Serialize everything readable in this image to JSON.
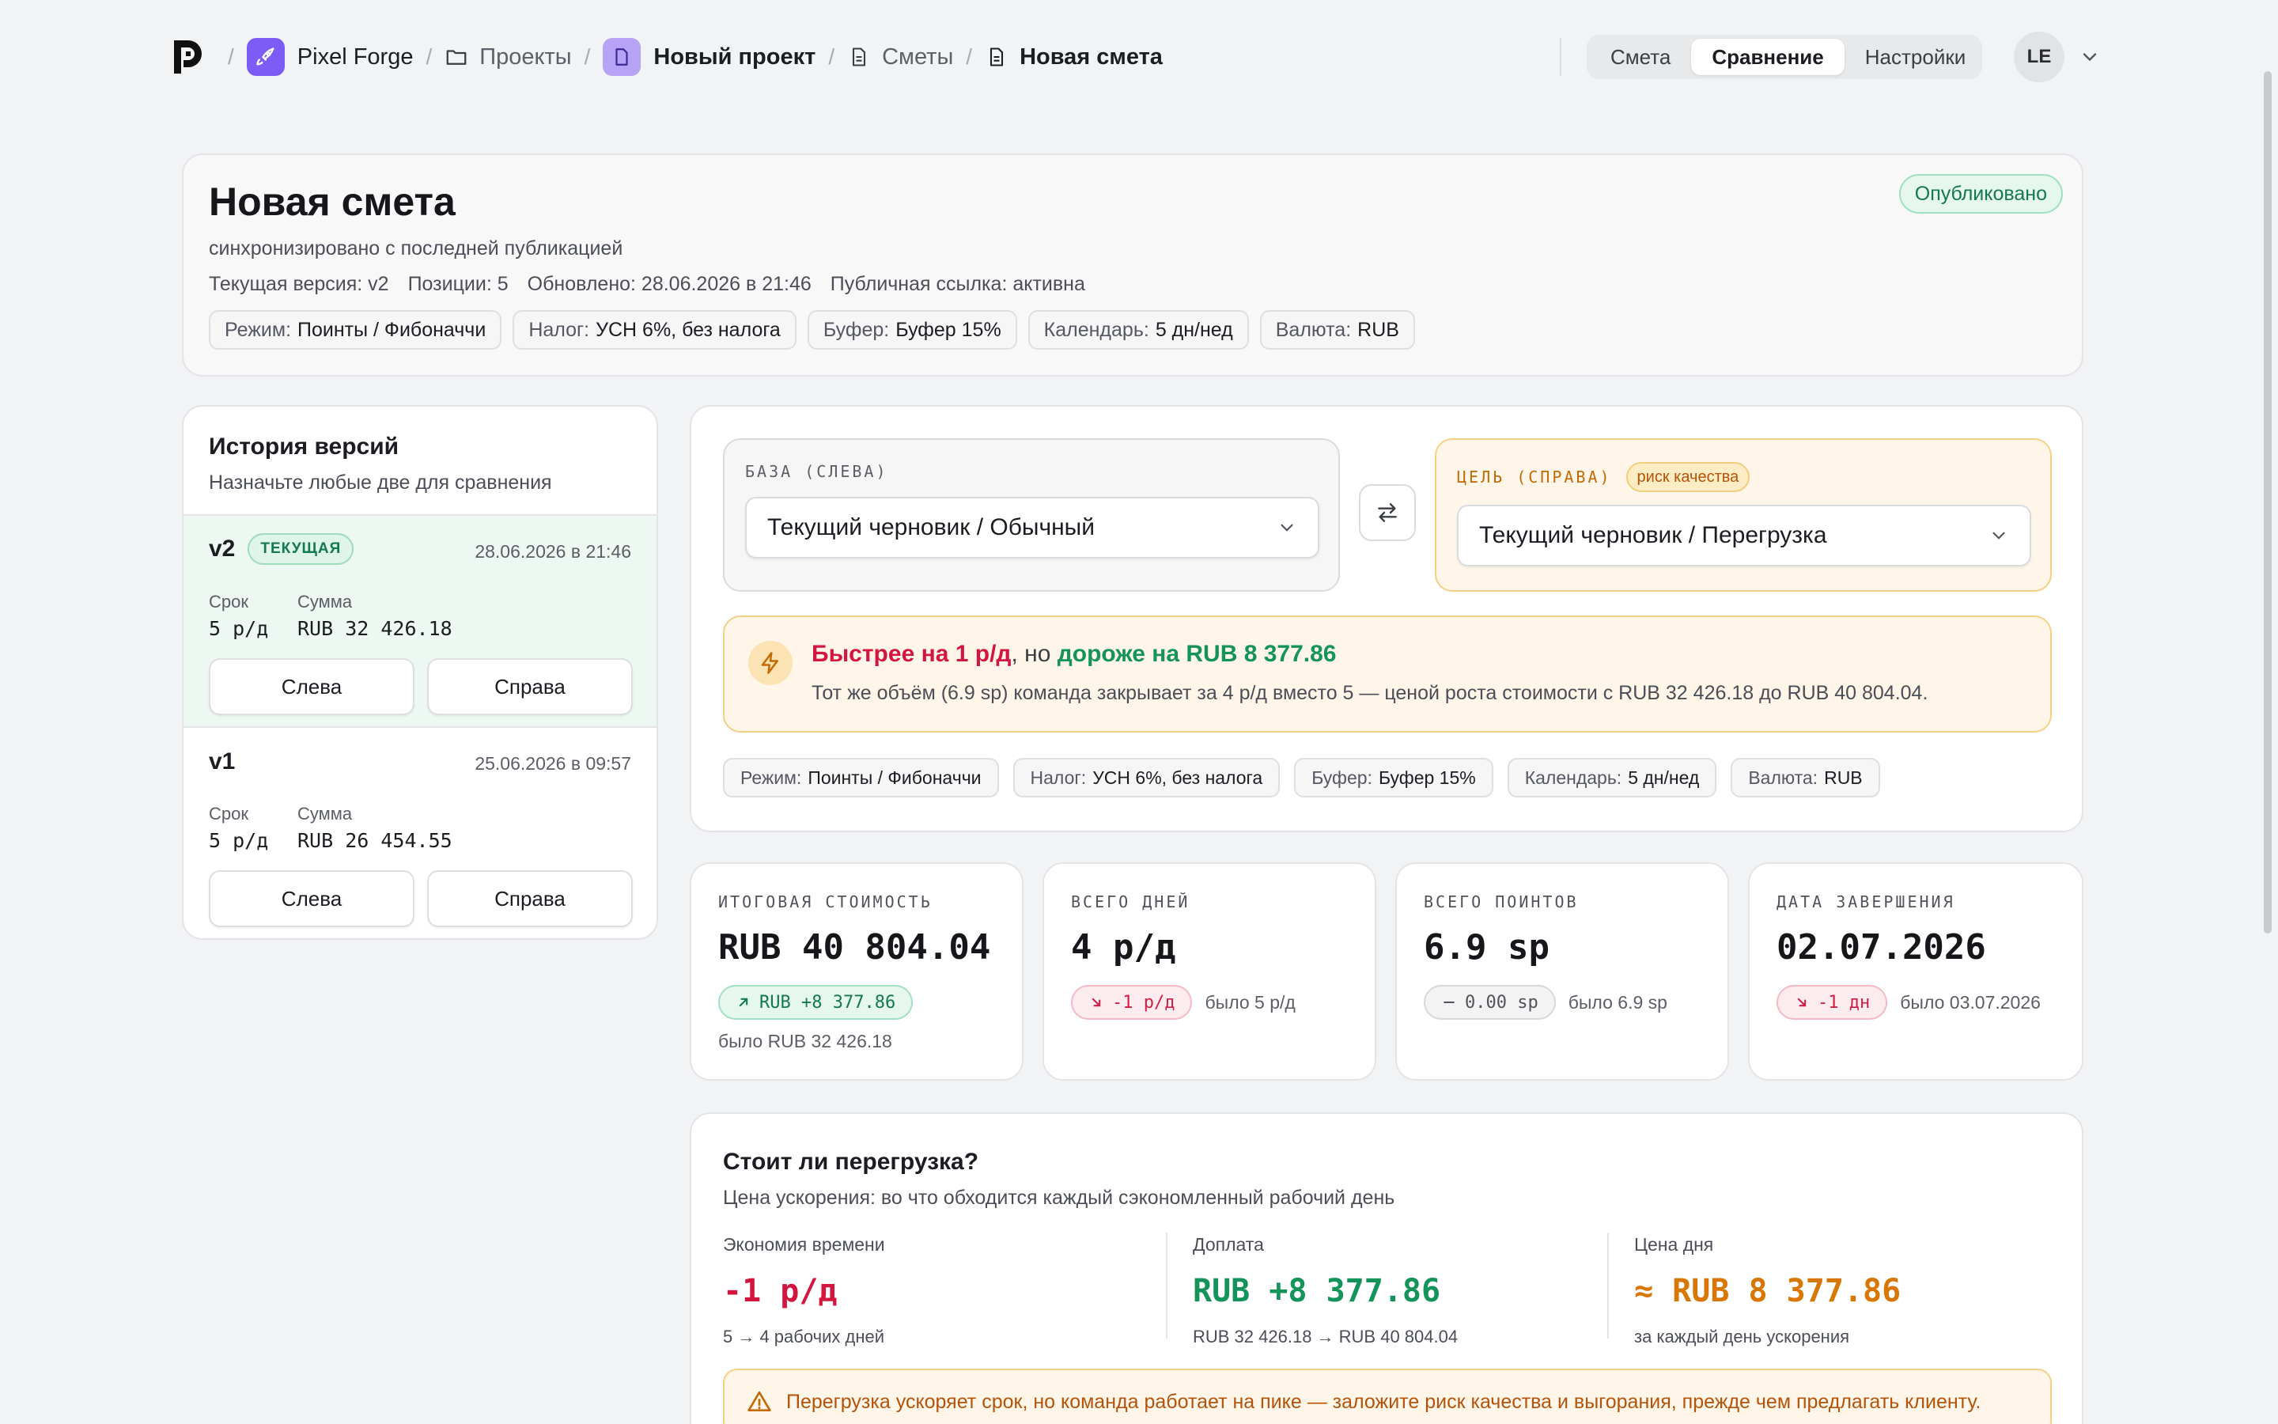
{
  "nav": {
    "workspace": "Pixel Forge",
    "projects": "Проекты",
    "project": "Новый проект",
    "estimates": "Сметы",
    "current": "Новая смета",
    "sep": "/"
  },
  "tabs": {
    "estimate": "Смета",
    "compare": "Сравнение",
    "settings": "Настройки"
  },
  "user": {
    "initials": "LE"
  },
  "header": {
    "title": "Новая смета",
    "status": "Опубликовано",
    "sync": "синхронизировано с последней публикацией",
    "meta": [
      "Текущая версия: v2",
      "Позиции: 5",
      "Обновлено: 28.06.2026 в 21:46",
      "Публичная ссылка: активна"
    ],
    "chips": [
      {
        "k": "Режим:",
        "v": "Поинты / Фибоначчи"
      },
      {
        "k": "Налог:",
        "v": "УСН 6%, без налога"
      },
      {
        "k": "Буфер:",
        "v": "Буфер 15%"
      },
      {
        "k": "Календарь:",
        "v": "5 дн/нед"
      },
      {
        "k": "Валюта:",
        "v": "RUB"
      }
    ]
  },
  "history": {
    "title": "История версий",
    "hint": "Назначьте любые две для сравнения",
    "term_label": "Срок",
    "sum_label": "Сумма",
    "left_btn": "Слева",
    "right_btn": "Справа",
    "versions": [
      {
        "name": "v2",
        "badge": "ТЕКУЩАЯ",
        "date": "28.06.2026 в 21:46",
        "term": "5 р/д",
        "sum": "RUB 32 426.18"
      },
      {
        "name": "v1",
        "date": "25.06.2026 в 09:57",
        "term": "5 р/д",
        "sum": "RUB 26 454.55"
      }
    ]
  },
  "compare": {
    "base_label": "БАЗА (СЛЕВА)",
    "base_value": "Текущий черновик / Обычный",
    "target_label": "ЦЕЛЬ (СПРАВА)",
    "target_badge": "риск качества",
    "target_value": "Текущий черновик / Перегрузка",
    "alert_fast": "Быстрее на 1 р/д",
    "alert_mid": ", но ",
    "alert_cost": "дороже на RUB 8 377.86",
    "alert_text": "Тот же объём (6.9 sp) команда закрывает за 4 р/д вместо 5 — ценой роста стоимости с RUB 32 426.18 до RUB 40 804.04.",
    "chips": [
      {
        "k": "Режим:",
        "v": "Поинты / Фибоначчи"
      },
      {
        "k": "Налог:",
        "v": "УСН 6%, без налога"
      },
      {
        "k": "Буфер:",
        "v": "Буфер 15%"
      },
      {
        "k": "Календарь:",
        "v": "5 дн/нед"
      },
      {
        "k": "Валюта:",
        "v": "RUB"
      }
    ]
  },
  "stats": [
    {
      "cap": "ИТОГОВАЯ СТОИМОСТЬ",
      "value": "RUB 40 804.04",
      "delta": "RUB +8 377.86",
      "was": "было RUB 32 426.18"
    },
    {
      "cap": "ВСЕГО ДНЕЙ",
      "value": "4 р/д",
      "delta": "-1 р/д",
      "was": "было 5 р/д"
    },
    {
      "cap": "ВСЕГО ПОИНТОВ",
      "value": "6.9 sp",
      "delta": "0.00 sp",
      "was": "было 6.9 sp"
    },
    {
      "cap": "ДАТА ЗАВЕРШЕНИЯ",
      "value": "02.07.2026",
      "delta": "-1 дн",
      "was": "было 03.07.2026"
    }
  ],
  "overload": {
    "title": "Стоит ли перегрузка?",
    "sub": "Цена ускорения: во что обходится каждый сэкономленный рабочий день",
    "cols": [
      {
        "label": "Экономия времени",
        "value": "-1 р/д",
        "note": "5 → 4 рабочих дней"
      },
      {
        "label": "Доплата",
        "value": "RUB +8 377.86",
        "note": "RUB 32 426.18 → RUB 40 804.04"
      },
      {
        "label": "Цена дня",
        "value": "≈ RUB 8 377.86",
        "note": "за каждый день ускорения"
      }
    ],
    "warning": "Перегрузка ускоряет срок, но команда работает на пике — заложите риск качества и выгорания, прежде чем предлагать клиенту."
  },
  "colors": {
    "red": "#d3163f",
    "green": "#14935a",
    "orange": "#d97706",
    "accent": "#7c5cf5"
  }
}
